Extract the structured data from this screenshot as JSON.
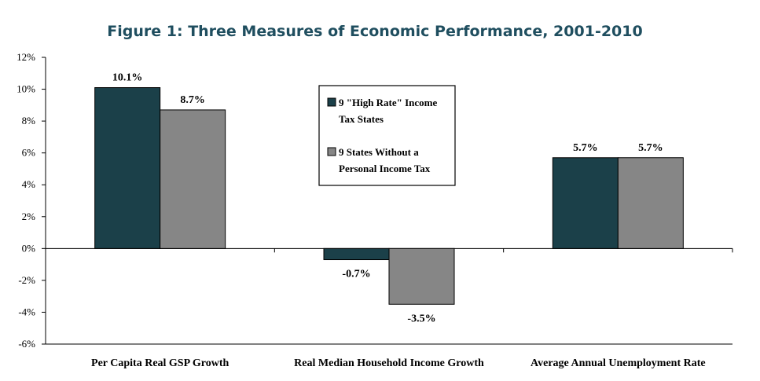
{
  "chart_data": {
    "type": "bar",
    "title": "Figure 1: Three Measures of Economic Performance, 2001-2010",
    "categories": [
      "Per Capita Real GSP Growth",
      "Real Median Household Income Growth",
      "Average Annual Unemployment Rate"
    ],
    "series": [
      {
        "name_lines": [
          "9 \"High Rate\" Income",
          "Tax States"
        ],
        "color": "#1b4049",
        "values": [
          10.1,
          -0.7,
          5.7
        ],
        "labels": [
          "10.1%",
          "-0.7%",
          "5.7%"
        ]
      },
      {
        "name_lines": [
          "9 States Without a",
          "Personal Income Tax"
        ],
        "color": "#868686",
        "values": [
          8.7,
          -3.5,
          5.7
        ],
        "labels": [
          "8.7%",
          "-3.5%",
          "5.7%"
        ]
      }
    ],
    "ylim": [
      -6,
      12
    ],
    "yticks": [
      12,
      10,
      8,
      6,
      4,
      2,
      0,
      -2,
      -4,
      -6
    ],
    "ytick_labels": [
      "12%",
      "10%",
      "8%",
      "6%",
      "4%",
      "2%",
      "0%",
      "-2%",
      "-4%",
      "-6%"
    ],
    "legend": "inside-center-top",
    "grid": false
  }
}
